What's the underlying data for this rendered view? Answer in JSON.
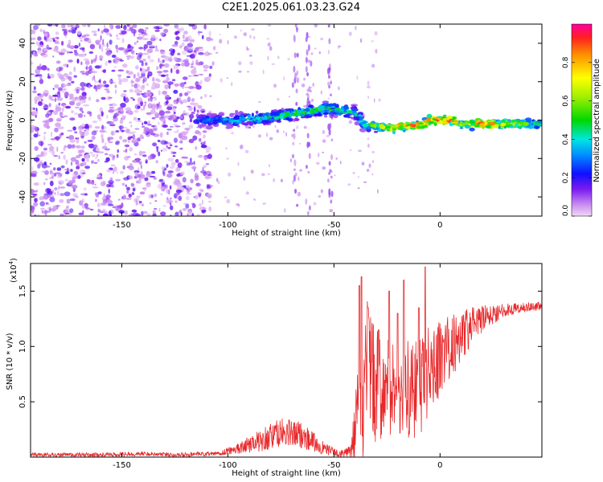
{
  "title": "C2E1.2025.061.03.23.G24",
  "chart_data": [
    {
      "type": "heatmap",
      "name": "spectrogram",
      "xlabel": "Height of straight line (km)",
      "ylabel": "Frequency (Hz)",
      "xlim": [
        -193,
        48
      ],
      "ylim": [
        -50,
        50
      ],
      "xticks": [
        -150,
        -100,
        -50,
        0
      ],
      "yticks": [
        -40,
        -20,
        0,
        20,
        40
      ],
      "colorbar": {
        "label": "Normalized spectral amplitude",
        "range": [
          0,
          1
        ],
        "ticks": [
          "0.0",
          "0.2",
          "0.4",
          "0.6",
          "0.8"
        ]
      },
      "signal_ridge": [
        {
          "x": -115,
          "y": 0,
          "amp": 0.3
        },
        {
          "x": -100,
          "y": 0,
          "amp": 0.35
        },
        {
          "x": -85,
          "y": 1,
          "amp": 0.45
        },
        {
          "x": -70,
          "y": 3,
          "amp": 0.5
        },
        {
          "x": -55,
          "y": 6,
          "amp": 0.5
        },
        {
          "x": -40,
          "y": 4,
          "amp": 0.45
        },
        {
          "x": -35,
          "y": -3,
          "amp": 0.5
        },
        {
          "x": -25,
          "y": -4,
          "amp": 0.75
        },
        {
          "x": -15,
          "y": -3,
          "amp": 0.85
        },
        {
          "x": -8,
          "y": -3,
          "amp": 0.9
        },
        {
          "x": -5,
          "y": 0,
          "amp": 0.85
        },
        {
          "x": 5,
          "y": 0,
          "amp": 0.95
        },
        {
          "x": 10,
          "y": -2,
          "amp": 0.6
        },
        {
          "x": 20,
          "y": -2,
          "amp": 0.9
        },
        {
          "x": 48,
          "y": -2,
          "amp": 0.45
        }
      ]
    },
    {
      "type": "line",
      "name": "snr",
      "xlabel": "Height of straight line (km)",
      "ylabel": "SNR (10 * v/v)",
      "multiplier": "(x10",
      "multiplier_exp": "4",
      "multiplier_close": ")",
      "xlim": [
        -193,
        48
      ],
      "ylim": [
        0,
        1.75
      ],
      "xticks": [
        -150,
        -100,
        -50,
        0
      ],
      "yticks": [
        "0.5",
        "1.0",
        "1.5"
      ],
      "color": "#e8282a",
      "envelope": [
        {
          "x": -193,
          "base": 0.02,
          "amp": 0.02
        },
        {
          "x": -160,
          "base": 0.02,
          "amp": 0.02
        },
        {
          "x": -140,
          "base": 0.03,
          "amp": 0.02
        },
        {
          "x": -120,
          "base": 0.02,
          "amp": 0.02
        },
        {
          "x": -105,
          "base": 0.03,
          "amp": 0.02
        },
        {
          "x": -95,
          "base": 0.08,
          "amp": 0.05
        },
        {
          "x": -85,
          "base": 0.15,
          "amp": 0.1
        },
        {
          "x": -75,
          "base": 0.22,
          "amp": 0.14
        },
        {
          "x": -65,
          "base": 0.2,
          "amp": 0.12
        },
        {
          "x": -55,
          "base": 0.08,
          "amp": 0.06
        },
        {
          "x": -48,
          "base": 0.03,
          "amp": 0.03
        },
        {
          "x": -42,
          "base": 0.05,
          "amp": 0.05
        },
        {
          "x": -38,
          "base": 0.45,
          "amp": 0.55
        },
        {
          "x": -35,
          "base": 0.75,
          "amp": 0.75
        },
        {
          "x": -30,
          "base": 0.65,
          "amp": 0.5
        },
        {
          "x": -20,
          "base": 0.6,
          "amp": 0.45
        },
        {
          "x": -10,
          "base": 0.6,
          "amp": 0.45
        },
        {
          "x": -5,
          "base": 0.8,
          "amp": 0.4
        },
        {
          "x": 0,
          "base": 0.9,
          "amp": 0.35
        },
        {
          "x": 10,
          "base": 1.1,
          "amp": 0.25
        },
        {
          "x": 20,
          "base": 1.25,
          "amp": 0.12
        },
        {
          "x": 30,
          "base": 1.33,
          "amp": 0.06
        },
        {
          "x": 48,
          "base": 1.37,
          "amp": 0.04
        }
      ],
      "spikes": [
        {
          "x": -38,
          "y": 1.55
        },
        {
          "x": -37,
          "y": 1.63
        },
        {
          "x": -34,
          "y": 1.35
        },
        {
          "x": -29,
          "y": 1.15
        },
        {
          "x": -24,
          "y": 1.5
        },
        {
          "x": -20,
          "y": 1.3
        },
        {
          "x": -17,
          "y": 1.6
        },
        {
          "x": -10,
          "y": 1.35
        },
        {
          "x": -7,
          "y": 1.72
        }
      ]
    }
  ]
}
